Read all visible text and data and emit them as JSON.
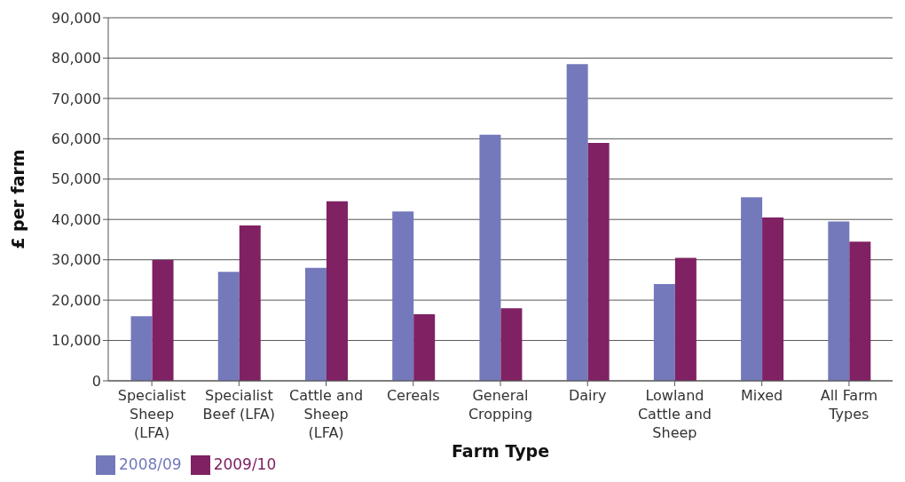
{
  "chart_data": {
    "type": "bar",
    "xlabel": "Farm Type",
    "ylabel": "£ per farm",
    "categories": [
      "Specialist Sheep (LFA)",
      "Specialist Beef (LFA)",
      "Cattle and Sheep (LFA)",
      "Cereals",
      "General Cropping",
      "Dairy",
      "Lowland Cattle and Sheep",
      "Mixed",
      "All Farm Types"
    ],
    "series": [
      {
        "name": "2008/09",
        "color": "#7479bb",
        "values": [
          16000,
          27000,
          28000,
          42000,
          61000,
          78500,
          24000,
          45500,
          39500
        ]
      },
      {
        "name": "2009/10",
        "color": "#7f2163",
        "values": [
          30000,
          38500,
          44500,
          16500,
          18000,
          59000,
          30500,
          40500,
          34500
        ]
      }
    ],
    "ylim": [
      0,
      90000
    ],
    "yticks": [
      {
        "value": 0,
        "label": "0"
      },
      {
        "value": 10000,
        "label": "10,000"
      },
      {
        "value": 20000,
        "label": "20,000"
      },
      {
        "value": 30000,
        "label": "30,000"
      },
      {
        "value": 40000,
        "label": "40,000"
      },
      {
        "value": 50000,
        "label": "50,000"
      },
      {
        "value": 60000,
        "label": "60,000"
      },
      {
        "value": 70000,
        "label": "70,000"
      },
      {
        "value": 80000,
        "label": "80,000"
      },
      {
        "value": 90000,
        "label": "90,000"
      }
    ],
    "grid": "y",
    "legend": "bottom left"
  }
}
